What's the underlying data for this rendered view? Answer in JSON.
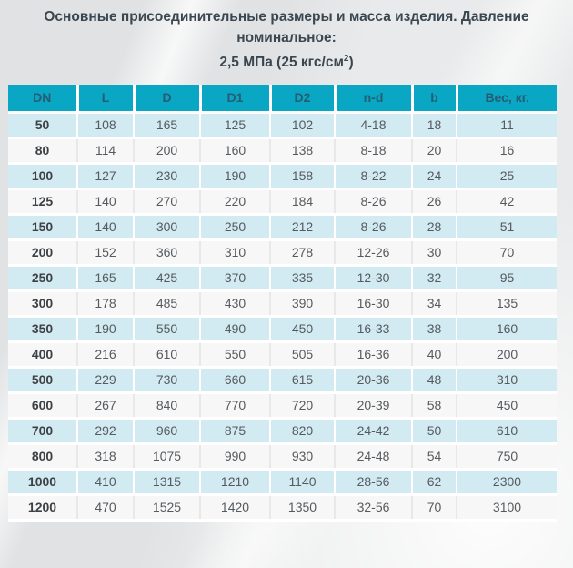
{
  "title": {
    "line1": "Основные присоединительные размеры и масса изделия. Давление номинальное:",
    "line2_prefix": "2,5 МПа (25 кгс/см",
    "line2_sup": "2",
    "line2_suffix": ")"
  },
  "table": {
    "columns": [
      "DN",
      "L",
      "D",
      "D1",
      "D2",
      "n-d",
      "b",
      "Вес, кг."
    ],
    "rows": [
      [
        "50",
        "108",
        "165",
        "125",
        "102",
        "4-18",
        "18",
        "11"
      ],
      [
        "80",
        "114",
        "200",
        "160",
        "138",
        "8-18",
        "20",
        "16"
      ],
      [
        "100",
        "127",
        "230",
        "190",
        "158",
        "8-22",
        "24",
        "25"
      ],
      [
        "125",
        "140",
        "270",
        "220",
        "184",
        "8-26",
        "26",
        "42"
      ],
      [
        "150",
        "140",
        "300",
        "250",
        "212",
        "8-26",
        "28",
        "51"
      ],
      [
        "200",
        "152",
        "360",
        "310",
        "278",
        "12-26",
        "30",
        "70"
      ],
      [
        "250",
        "165",
        "425",
        "370",
        "335",
        "12-30",
        "32",
        "95"
      ],
      [
        "300",
        "178",
        "485",
        "430",
        "390",
        "16-30",
        "34",
        "135"
      ],
      [
        "350",
        "190",
        "550",
        "490",
        "450",
        "16-33",
        "38",
        "160"
      ],
      [
        "400",
        "216",
        "610",
        "550",
        "505",
        "16-36",
        "40",
        "200"
      ],
      [
        "500",
        "229",
        "730",
        "660",
        "615",
        "20-36",
        "48",
        "310"
      ],
      [
        "600",
        "267",
        "840",
        "770",
        "720",
        "20-39",
        "58",
        "450"
      ],
      [
        "700",
        "292",
        "960",
        "875",
        "820",
        "24-42",
        "50",
        "610"
      ],
      [
        "800",
        "318",
        "1075",
        "990",
        "930",
        "24-48",
        "54",
        "750"
      ],
      [
        "1000",
        "410",
        "1315",
        "1210",
        "1140",
        "28-56",
        "62",
        "2300"
      ],
      [
        "1200",
        "470",
        "1525",
        "1420",
        "1350",
        "32-56",
        "70",
        "3100"
      ]
    ]
  },
  "colors": {
    "header_bg": "#09a7c4",
    "header_text": "#275d74",
    "row_cyan": "#d2ebf2",
    "row_light": "#f7f7f7",
    "cell_text": "#565a5e",
    "title_text": "#3a4750",
    "page_bg": "#e9eaeb"
  }
}
